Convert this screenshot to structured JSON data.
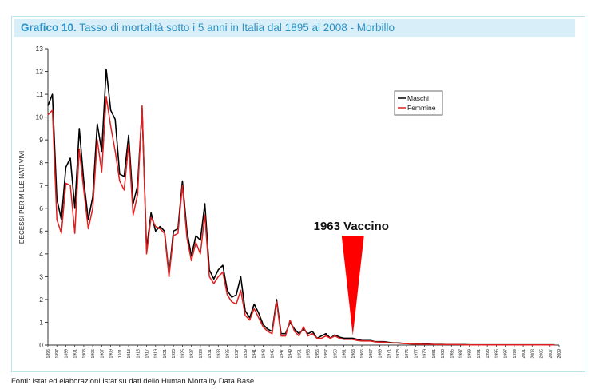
{
  "title_bold": "Grafico 10.",
  "title_rest": "Tasso di mortalità sotto i 5 anni in Italia dal 1895 al 2008 - Morbillo",
  "source_note": "Fonti: Istat ed elaborazioni Istat su dati dello Human Mortality Data Base.",
  "colors": {
    "maschi": "#000000",
    "femmine": "#e02020",
    "marker": "#ff0000",
    "title": "#2a93c8",
    "title_bg": "#d8eef8"
  },
  "chart_data": {
    "type": "line",
    "ylabel": "DECESSI PER MILLE NATI VIVI",
    "xlabel": "",
    "ylim": [
      0,
      13
    ],
    "yticks": [
      0,
      1,
      2,
      3,
      4,
      5,
      6,
      7,
      8,
      9,
      10,
      11,
      12,
      13
    ],
    "xlim": [
      1895,
      2009
    ],
    "xticks": [
      1895,
      1897,
      1899,
      1901,
      1903,
      1905,
      1907,
      1909,
      1911,
      1913,
      1915,
      1917,
      1919,
      1921,
      1923,
      1925,
      1927,
      1929,
      1931,
      1933,
      1935,
      1937,
      1939,
      1941,
      1943,
      1945,
      1947,
      1949,
      1951,
      1953,
      1955,
      1957,
      1959,
      1961,
      1963,
      1965,
      1967,
      1969,
      1971,
      1973,
      1975,
      1977,
      1979,
      1981,
      1983,
      1985,
      1987,
      1989,
      1991,
      1993,
      1995,
      1997,
      1999,
      2001,
      2003,
      2005,
      2007,
      2009
    ],
    "legend": {
      "position": "top-right",
      "entries": [
        "Maschi",
        "Femmine"
      ]
    },
    "annotation": {
      "text": "1963 Vaccino",
      "x": 1963
    },
    "series": [
      {
        "name": "Maschi",
        "x": [
          1895,
          1896,
          1897,
          1898,
          1899,
          1900,
          1901,
          1902,
          1903,
          1904,
          1905,
          1906,
          1907,
          1908,
          1909,
          1910,
          1911,
          1912,
          1913,
          1914,
          1915,
          1916,
          1917,
          1918,
          1919,
          1920,
          1921,
          1922,
          1923,
          1924,
          1925,
          1926,
          1927,
          1928,
          1929,
          1930,
          1931,
          1932,
          1933,
          1934,
          1935,
          1936,
          1937,
          1938,
          1939,
          1940,
          1941,
          1942,
          1943,
          1944,
          1945,
          1946,
          1947,
          1948,
          1949,
          1950,
          1951,
          1952,
          1953,
          1954,
          1955,
          1956,
          1957,
          1958,
          1959,
          1960,
          1961,
          1962,
          1963,
          1964,
          1965,
          1966,
          1967,
          1968,
          1969,
          1970,
          1971,
          1972,
          1973,
          1974,
          1975,
          1976,
          1977,
          1978,
          1979,
          1980,
          1981,
          1982,
          1983,
          1984,
          1985,
          1986,
          1987,
          1988,
          1989,
          1990,
          1991,
          1992,
          1993,
          1994,
          1995,
          1996,
          1997,
          1998,
          1999,
          2000,
          2001,
          2002,
          2003,
          2004,
          2005,
          2006,
          2007,
          2008
        ],
        "values": [
          10.5,
          11.0,
          6.4,
          5.5,
          7.8,
          8.2,
          6.0,
          9.5,
          7.2,
          5.5,
          6.5,
          9.7,
          8.5,
          12.1,
          10.3,
          9.9,
          7.5,
          7.4,
          9.2,
          6.2,
          7.0,
          10.4,
          4.2,
          5.8,
          5.0,
          5.2,
          5.0,
          3.1,
          5.0,
          5.1,
          7.2,
          5.0,
          3.9,
          4.8,
          4.6,
          6.2,
          3.3,
          2.9,
          3.3,
          3.5,
          2.4,
          2.1,
          2.2,
          3.0,
          1.5,
          1.2,
          1.8,
          1.4,
          0.9,
          0.7,
          0.6,
          2.0,
          0.5,
          0.5,
          1.0,
          0.7,
          0.5,
          0.7,
          0.5,
          0.6,
          0.3,
          0.4,
          0.5,
          0.3,
          0.45,
          0.35,
          0.3,
          0.3,
          0.3,
          0.25,
          0.2,
          0.2,
          0.2,
          0.15,
          0.15,
          0.15,
          0.12,
          0.1,
          0.1,
          0.08,
          0.07,
          0.06,
          0.05,
          0.05,
          0.04,
          0.04,
          0.03,
          0.03,
          0.03,
          0.02,
          0.02,
          0.02,
          0.02,
          0.02,
          0.01,
          0.01,
          0.01,
          0.01,
          0.01,
          0.01,
          0.01,
          0.01,
          0.01,
          0.01,
          0.01,
          0.01,
          0.01,
          0.01,
          0.01,
          0.01,
          0.01,
          0.01,
          0.01,
          0.01
        ]
      },
      {
        "name": "Femmine",
        "x": [
          1895,
          1896,
          1897,
          1898,
          1899,
          1900,
          1901,
          1902,
          1903,
          1904,
          1905,
          1906,
          1907,
          1908,
          1909,
          1910,
          1911,
          1912,
          1913,
          1914,
          1915,
          1916,
          1917,
          1918,
          1919,
          1920,
          1921,
          1922,
          1923,
          1924,
          1925,
          1926,
          1927,
          1928,
          1929,
          1930,
          1931,
          1932,
          1933,
          1934,
          1935,
          1936,
          1937,
          1938,
          1939,
          1940,
          1941,
          1942,
          1943,
          1944,
          1945,
          1946,
          1947,
          1948,
          1949,
          1950,
          1951,
          1952,
          1953,
          1954,
          1955,
          1956,
          1957,
          1958,
          1959,
          1960,
          1961,
          1962,
          1963,
          1964,
          1965,
          1966,
          1967,
          1968,
          1969,
          1970,
          1971,
          1972,
          1973,
          1974,
          1975,
          1976,
          1977,
          1978,
          1979,
          1980,
          1981,
          1982,
          1983,
          1984,
          1985,
          1986,
          1987,
          1988,
          1989,
          1990,
          1991,
          1992,
          1993,
          1994,
          1995,
          1996,
          1997,
          1998,
          1999,
          2000,
          2001,
          2002,
          2003,
          2004,
          2005,
          2006,
          2007,
          2008
        ],
        "values": [
          10.1,
          10.3,
          5.5,
          4.9,
          7.1,
          7.0,
          4.9,
          8.6,
          6.8,
          5.1,
          6.0,
          9.0,
          7.6,
          10.9,
          9.6,
          8.5,
          7.2,
          6.8,
          8.8,
          5.7,
          6.6,
          10.5,
          4.0,
          5.6,
          5.2,
          5.1,
          4.9,
          3.0,
          4.8,
          4.9,
          7.0,
          4.7,
          3.7,
          4.5,
          4.0,
          5.7,
          3.0,
          2.7,
          3.0,
          3.2,
          2.2,
          1.9,
          1.8,
          2.4,
          1.3,
          1.1,
          1.6,
          1.2,
          0.8,
          0.6,
          0.5,
          1.9,
          0.4,
          0.4,
          1.1,
          0.6,
          0.4,
          0.8,
          0.4,
          0.5,
          0.3,
          0.3,
          0.4,
          0.3,
          0.4,
          0.3,
          0.25,
          0.25,
          0.25,
          0.2,
          0.18,
          0.18,
          0.18,
          0.14,
          0.13,
          0.13,
          0.1,
          0.09,
          0.09,
          0.07,
          0.06,
          0.05,
          0.04,
          0.04,
          0.03,
          0.03,
          0.03,
          0.02,
          0.02,
          0.02,
          0.02,
          0.02,
          0.02,
          0.01,
          0.01,
          0.01,
          0.01,
          0.01,
          0.01,
          0.01,
          0.01,
          0.01,
          0.01,
          0.01,
          0.01,
          0.01,
          0.01,
          0.01,
          0.01,
          0.01,
          0.01,
          0.01,
          0.01,
          0.01
        ]
      }
    ]
  }
}
